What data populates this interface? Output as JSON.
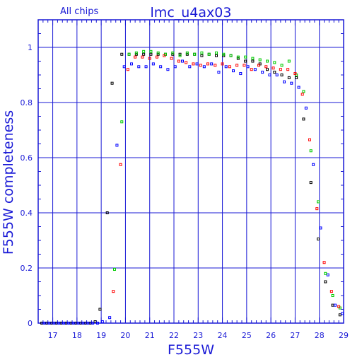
{
  "chart_data": {
    "type": "scatter",
    "title": "lmc_u4ax03",
    "subtitle": "All chips",
    "xlabel": "F555W",
    "ylabel": "F555W completeness",
    "xlim": [
      16.4,
      29.0
    ],
    "ylim": [
      0.0,
      1.1
    ],
    "grid": true,
    "x_ticks": [
      "17",
      "18",
      "19",
      "20",
      "21",
      "22",
      "23",
      "24",
      "25",
      "26",
      "27",
      "28",
      "29"
    ],
    "y_ticks": [
      "0",
      "0.2",
      "0.4",
      "0.6",
      "0.8",
      "1"
    ],
    "colors": {
      "axis": "#1a1ad6",
      "grid": "#1a1ad6",
      "text": "#1a1ad6"
    },
    "series": [
      {
        "color": "#000000",
        "x": [
          16.55,
          16.75,
          16.95,
          17.15,
          17.35,
          17.55,
          17.75,
          17.95,
          18.15,
          18.35,
          18.55,
          18.75,
          18.95,
          19.25,
          19.45,
          19.85,
          20.15,
          20.45,
          20.75,
          21.05,
          21.35,
          21.65,
          21.95,
          22.25,
          22.55,
          22.85,
          23.15,
          23.45,
          23.75,
          24.05,
          24.35,
          24.65,
          24.95,
          25.25,
          25.55,
          25.85,
          26.15,
          26.45,
          26.75,
          27.05,
          27.35,
          27.65,
          27.95,
          28.25,
          28.55,
          28.85
        ],
        "y": [
          0,
          0,
          0,
          0,
          0,
          0,
          0,
          0,
          0,
          0,
          0,
          0.005,
          0.05,
          0.4,
          0.87,
          0.975,
          0.975,
          0.975,
          0.975,
          0.975,
          0.975,
          0.975,
          0.975,
          0.975,
          0.975,
          0.975,
          0.97,
          0.975,
          0.97,
          0.97,
          0.97,
          0.96,
          0.95,
          0.95,
          0.94,
          0.92,
          0.91,
          0.9,
          0.89,
          0.89,
          0.74,
          0.51,
          0.305,
          0.15,
          0.065,
          0.03
        ]
      },
      {
        "color": "#0000ff",
        "x": [
          16.65,
          16.85,
          17.05,
          17.25,
          17.45,
          17.65,
          17.85,
          18.05,
          18.25,
          18.45,
          18.65,
          18.85,
          19.05,
          19.35,
          19.65,
          19.95,
          20.25,
          20.55,
          20.85,
          21.15,
          21.45,
          21.75,
          22.05,
          22.35,
          22.65,
          22.95,
          23.25,
          23.55,
          23.85,
          24.15,
          24.45,
          24.75,
          25.05,
          25.35,
          25.65,
          25.95,
          26.25,
          26.55,
          26.85,
          27.15,
          27.45,
          27.75,
          28.05,
          28.35,
          28.65,
          28.95
        ],
        "y": [
          0,
          0,
          0,
          0,
          0,
          0,
          0,
          0,
          0,
          0,
          0,
          0,
          0.005,
          0.02,
          0.645,
          0.93,
          0.94,
          0.93,
          0.93,
          0.94,
          0.93,
          0.92,
          0.93,
          0.95,
          0.93,
          0.94,
          0.93,
          0.94,
          0.91,
          0.93,
          0.915,
          0.905,
          0.93,
          0.92,
          0.91,
          0.9,
          0.9,
          0.875,
          0.87,
          0.855,
          0.78,
          0.575,
          0.345,
          0.175,
          0.065,
          0.035
        ]
      },
      {
        "color": "#00cc00",
        "x": [
          19.55,
          19.85,
          20.15,
          20.45,
          20.75,
          21.05,
          21.35,
          21.65,
          21.95,
          22.25,
          22.55,
          22.85,
          23.15,
          23.45,
          23.75,
          24.05,
          24.35,
          24.65,
          24.95,
          25.25,
          25.55,
          25.85,
          26.15,
          26.45,
          26.75,
          27.05,
          27.35,
          27.65,
          27.95,
          28.25,
          28.55,
          28.85
        ],
        "y": [
          0.195,
          0.73,
          0.975,
          0.98,
          0.985,
          0.985,
          0.98,
          0.975,
          0.98,
          0.97,
          0.98,
          0.975,
          0.98,
          0.975,
          0.98,
          0.975,
          0.97,
          0.965,
          0.965,
          0.96,
          0.955,
          0.95,
          0.945,
          0.935,
          0.95,
          0.9,
          0.84,
          0.625,
          0.44,
          0.18,
          0.1,
          0.055
        ]
      },
      {
        "color": "#ff0000",
        "x": [
          19.5,
          19.8,
          20.1,
          20.4,
          20.7,
          21.0,
          21.3,
          21.6,
          21.9,
          22.2,
          22.5,
          22.8,
          23.1,
          23.4,
          23.7,
          24.0,
          24.3,
          24.6,
          24.9,
          25.2,
          25.5,
          25.8,
          26.1,
          26.4,
          26.7,
          27.0,
          27.3,
          27.6,
          27.9,
          28.2,
          28.5,
          28.8
        ],
        "y": [
          0.115,
          0.575,
          0.92,
          0.965,
          0.965,
          0.96,
          0.965,
          0.97,
          0.96,
          0.95,
          0.945,
          0.94,
          0.935,
          0.94,
          0.935,
          0.94,
          0.93,
          0.935,
          0.935,
          0.92,
          0.935,
          0.93,
          0.925,
          0.92,
          0.92,
          0.905,
          0.83,
          0.665,
          0.415,
          0.22,
          0.115,
          0.06
        ]
      }
    ]
  }
}
